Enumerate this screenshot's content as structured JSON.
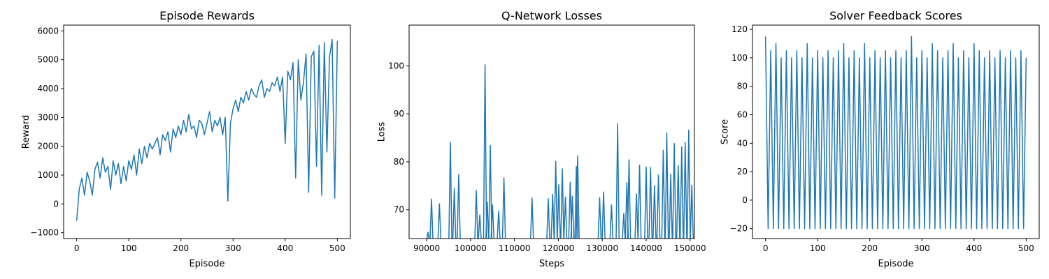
{
  "chart_data": [
    {
      "type": "line",
      "title": "Episode Rewards",
      "xlabel": "Episode",
      "ylabel": "Reward",
      "xlim": [
        -25,
        525
      ],
      "ylim": [
        -1200,
        6200
      ],
      "xticks": [
        0,
        100,
        200,
        300,
        400,
        500
      ],
      "yticks": [
        -1000,
        0,
        1000,
        2000,
        3000,
        4000,
        5000,
        6000
      ],
      "color": "#1f77b4",
      "series": [
        {
          "x_start": 0,
          "x_step": 5,
          "values": [
            -580,
            520,
            900,
            300,
            1100,
            800,
            300,
            1200,
            1450,
            900,
            1600,
            1100,
            1300,
            500,
            1500,
            1000,
            1400,
            700,
            1300,
            800,
            1500,
            1200,
            1700,
            1000,
            1900,
            1400,
            2000,
            1600,
            2100,
            1900,
            2100,
            2300,
            1700,
            2400,
            2200,
            2500,
            1800,
            2600,
            2300,
            2700,
            2400,
            2900,
            2500,
            3100,
            2600,
            2700,
            2300,
            2900,
            2800,
            2400,
            2800,
            3200,
            2500,
            2900,
            2700,
            3000,
            2400,
            3000,
            100,
            2800,
            3300,
            3600,
            3200,
            3700,
            3500,
            3900,
            3600,
            4000,
            3800,
            3700,
            4100,
            4300,
            3700,
            4000,
            3900,
            4200,
            4100,
            4400,
            3900,
            4400,
            2100,
            4600,
            4300,
            4900,
            900,
            5000,
            3600,
            4200,
            5200,
            400,
            5100,
            5300,
            1300,
            5500,
            300,
            5600,
            1800,
            5100,
            5700,
            200,
            5650
          ]
        }
      ]
    },
    {
      "type": "line",
      "title": "Q-Network Losses",
      "xlabel": "Steps",
      "ylabel": "Loss",
      "xlim": [
        86000,
        151000
      ],
      "ylim": [
        64,
        108.5
      ],
      "xticks": [
        90000,
        100000,
        110000,
        120000,
        130000,
        140000,
        150000
      ],
      "yticks": [
        70,
        80,
        90,
        100
      ],
      "color": "#1f77b4",
      "spikes": [
        [
          90300,
          65.4
        ],
        [
          91100,
          72.3
        ],
        [
          92900,
          71.3
        ],
        [
          95400,
          84.1
        ],
        [
          96300,
          74.5
        ],
        [
          97300,
          77.4
        ],
        [
          101300,
          74.1
        ],
        [
          102100,
          69.0
        ],
        [
          103300,
          100.3
        ],
        [
          103800,
          71.7
        ],
        [
          104500,
          83.5
        ],
        [
          105000,
          71.1
        ],
        [
          106400,
          69.8
        ],
        [
          107600,
          76.7
        ],
        [
          114000,
          72.5
        ],
        [
          117700,
          72.4
        ],
        [
          118700,
          73.3
        ],
        [
          119400,
          80.2
        ],
        [
          120100,
          75.3
        ],
        [
          120900,
          78.6
        ],
        [
          121600,
          72.7
        ],
        [
          122700,
          75.8
        ],
        [
          123200,
          72.9
        ],
        [
          124100,
          79.1
        ],
        [
          124400,
          81.3
        ],
        [
          129400,
          72.6
        ],
        [
          130300,
          73.8
        ],
        [
          132100,
          71.1
        ],
        [
          133500,
          88.0
        ],
        [
          134900,
          69.3
        ],
        [
          135600,
          75.7
        ],
        [
          136100,
          80.5
        ],
        [
          137800,
          73.4
        ],
        [
          138500,
          79.4
        ],
        [
          140000,
          79.0
        ],
        [
          141000,
          78.9
        ],
        [
          141900,
          75.1
        ],
        [
          142800,
          77.3
        ],
        [
          143900,
          82.5
        ],
        [
          144700,
          86.1
        ],
        [
          145600,
          77.5
        ],
        [
          146400,
          83.9
        ],
        [
          147300,
          79.3
        ],
        [
          148100,
          83.2
        ],
        [
          148900,
          84.1
        ],
        [
          149700,
          86.7
        ],
        [
          150400,
          75.2
        ]
      ]
    },
    {
      "type": "line",
      "title": "Solver Feedback Scores",
      "xlabel": "Episode",
      "ylabel": "Score",
      "xlim": [
        -25,
        525
      ],
      "ylim": [
        -27,
        123
      ],
      "xticks": [
        0,
        100,
        200,
        300,
        400,
        500
      ],
      "yticks": [
        -20,
        0,
        20,
        40,
        60,
        80,
        100,
        120
      ],
      "color": "#1f77b4",
      "series": [
        {
          "x_start": 0,
          "x_step": 5,
          "values": [
            115,
            -20,
            105,
            -20,
            110,
            -20,
            100,
            -20,
            105,
            -20,
            100,
            -20,
            105,
            -20,
            100,
            -20,
            110,
            -20,
            100,
            -20,
            105,
            -20,
            100,
            -20,
            105,
            -20,
            100,
            -20,
            105,
            -20,
            110,
            -20,
            100,
            -20,
            105,
            -20,
            100,
            -20,
            110,
            -20,
            100,
            -20,
            105,
            -20,
            100,
            -20,
            105,
            -20,
            100,
            -20,
            105,
            -20,
            100,
            -20,
            105,
            -20,
            115,
            -20,
            100,
            -20,
            105,
            -20,
            100,
            -20,
            110,
            -20,
            105,
            -20,
            100,
            -20,
            105,
            -20,
            110,
            -20,
            100,
            -20,
            105,
            -20,
            100,
            -20,
            110,
            -20,
            105,
            -20,
            100,
            -20,
            105,
            -20,
            100,
            -20,
            105,
            -20,
            100,
            -20,
            105,
            -20,
            100,
            -20,
            105,
            -20,
            100
          ]
        }
      ]
    }
  ]
}
